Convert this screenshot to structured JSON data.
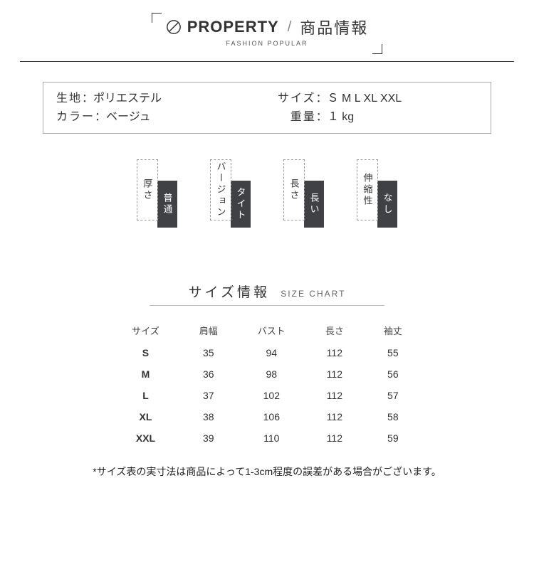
{
  "header": {
    "title_en": "PROPERTY",
    "title_jp": "商品情報",
    "subtitle": "FASHION POPULAR"
  },
  "info": {
    "fabric_label": "生地",
    "fabric_value": "ポリエステル",
    "color_label": "カラー",
    "color_value": "ベージュ",
    "size_label": "サイズ",
    "size_value": "Ｓ M L XL XXL",
    "weight_label": "重量",
    "weight_value": "１ kg"
  },
  "attrs": [
    {
      "label": "厚さ",
      "value": "普通"
    },
    {
      "label": "バージョン",
      "value": "タイト"
    },
    {
      "label": "長さ",
      "value": "長い"
    },
    {
      "label": "伸縮性",
      "value": "なし"
    }
  ],
  "size_section": {
    "title_jp": "サイズ情報",
    "title_en": "SIZE CHART",
    "columns": [
      "サイズ",
      "肩幅",
      "バスト",
      "長さ",
      "袖丈"
    ],
    "rows": [
      [
        "S",
        "35",
        "94",
        "112",
        "55"
      ],
      [
        "M",
        "36",
        "98",
        "112",
        "56"
      ],
      [
        "L",
        "37",
        "102",
        "112",
        "57"
      ],
      [
        "XL",
        "38",
        "106",
        "112",
        "58"
      ],
      [
        "XXL",
        "39",
        "110",
        "112",
        "59"
      ]
    ]
  },
  "note": "*サイズ表の実寸法は商品によって1-3cm程度の誤差がある場合がございます。",
  "colors": {
    "text": "#333333",
    "dark_box": "#3f4144",
    "border": "#aaaaaa",
    "dashed": "#999999",
    "background": "#ffffff"
  }
}
